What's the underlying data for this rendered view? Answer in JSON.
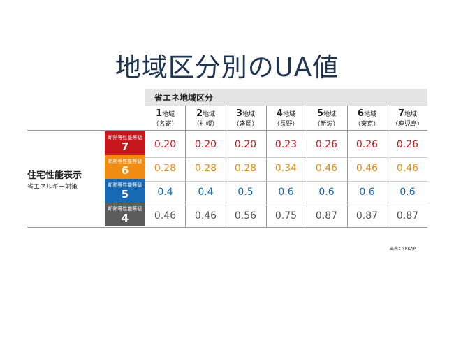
{
  "title": "地域区分別のUA値",
  "header_label": "省エネ地域区分",
  "row_header": {
    "title": "住宅性能表示",
    "subtitle": "省エネルギー対策"
  },
  "region_suffix": "地域",
  "regions": [
    {
      "num": "1",
      "city": "（名寄）"
    },
    {
      "num": "2",
      "city": "（札幌）"
    },
    {
      "num": "3",
      "city": "（盛岡）"
    },
    {
      "num": "4",
      "city": "（長野）"
    },
    {
      "num": "5",
      "city": "（新潟）"
    },
    {
      "num": "6",
      "city": "（東京）"
    },
    {
      "num": "7",
      "city": "（鹿児島）"
    }
  ],
  "grade_label": "断熱等性能等級",
  "grades": [
    {
      "grade": "7",
      "color": "#c8161d",
      "text_color": "#c8161d",
      "values": [
        "0.20",
        "0.20",
        "0.20",
        "0.23",
        "0.26",
        "0.26",
        "0.26"
      ]
    },
    {
      "grade": "6",
      "color": "#ef8c11",
      "text_color": "#e38a10",
      "values": [
        "0.28",
        "0.28",
        "0.28",
        "0.34",
        "0.46",
        "0.46",
        "0.46"
      ]
    },
    {
      "grade": "5",
      "color": "#1769b3",
      "text_color": "#1769b3",
      "values": [
        "0.4",
        "0.4",
        "0.5",
        "0.6",
        "0.6",
        "0.6",
        "0.6"
      ]
    },
    {
      "grade": "4",
      "color": "#5c5c5c",
      "text_color": "#555555",
      "values": [
        "0.46",
        "0.46",
        "0.56",
        "0.75",
        "0.87",
        "0.87",
        "0.87"
      ]
    }
  ],
  "source": "出典：YKKAP"
}
